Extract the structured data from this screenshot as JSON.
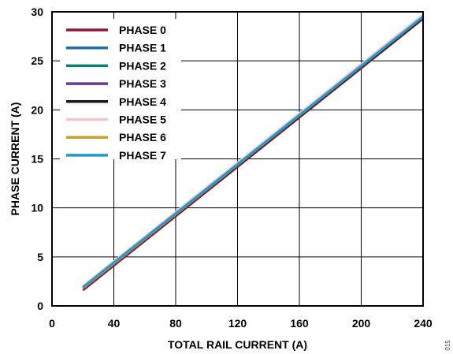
{
  "figure_id": "015",
  "chart_data": {
    "type": "line",
    "xlabel": "TOTAL RAIL CURRENT (A)",
    "ylabel": "PHASE CURRENT (A)",
    "xlim": [
      0,
      240
    ],
    "ylim": [
      0,
      30
    ],
    "xticks": [
      0,
      40,
      80,
      120,
      160,
      200,
      240
    ],
    "yticks": [
      0,
      5,
      10,
      15,
      20,
      25,
      30
    ],
    "grid": true,
    "legend_position": "top-left",
    "series": [
      {
        "name": "PHASE 0",
        "color": "#8B1A3C",
        "x": [
          20,
          240
        ],
        "y": [
          1.6,
          29.3
        ]
      },
      {
        "name": "PHASE 1",
        "color": "#1F6FB0",
        "x": [
          20,
          240
        ],
        "y": [
          1.9,
          29.5
        ]
      },
      {
        "name": "PHASE 2",
        "color": "#0E7F74",
        "x": [
          20,
          240
        ],
        "y": [
          1.9,
          29.5
        ]
      },
      {
        "name": "PHASE 3",
        "color": "#6B3A8E",
        "x": [
          20,
          240
        ],
        "y": [
          2.0,
          29.6
        ]
      },
      {
        "name": "PHASE 4",
        "color": "#1A1A1A",
        "x": [
          20,
          240
        ],
        "y": [
          1.8,
          29.4
        ]
      },
      {
        "name": "PHASE 5",
        "color": "#F0C4CC",
        "x": [
          20,
          240
        ],
        "y": [
          2.0,
          29.7
        ]
      },
      {
        "name": "PHASE 6",
        "color": "#C8A030",
        "x": [
          20,
          240
        ],
        "y": [
          1.8,
          29.5
        ]
      },
      {
        "name": "PHASE 7",
        "color": "#1E9AD0",
        "x": [
          20,
          240
        ],
        "y": [
          1.9,
          29.5
        ]
      }
    ]
  }
}
